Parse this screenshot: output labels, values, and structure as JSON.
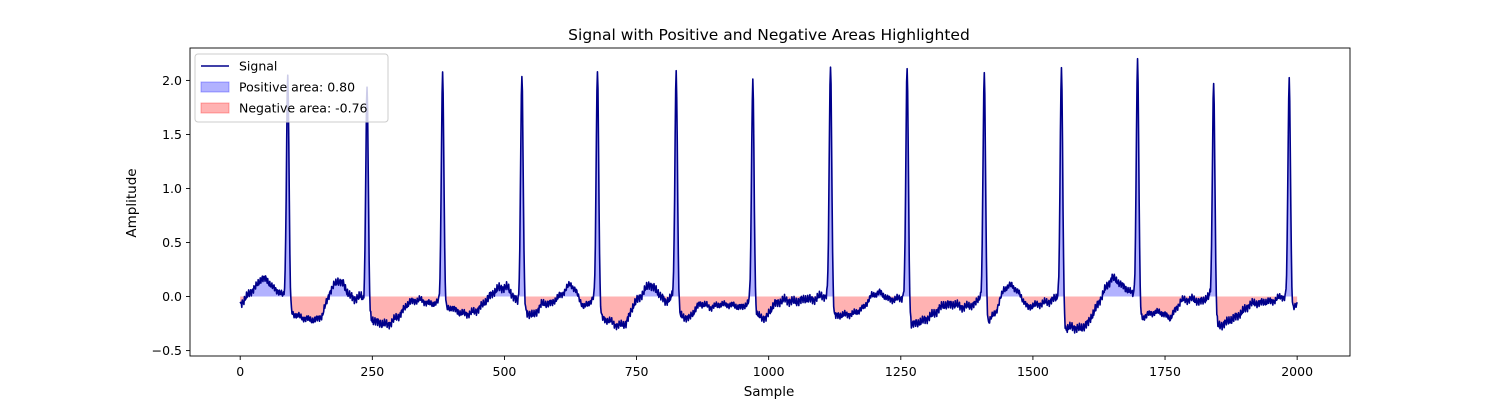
{
  "chart_data": {
    "type": "area",
    "title": "Signal with Positive and Negative Areas Highlighted",
    "xlabel": "Sample",
    "ylabel": "Amplitude",
    "xlim": [
      -95,
      2100
    ],
    "ylim": [
      -0.55,
      2.3
    ],
    "xticks": [
      0,
      250,
      500,
      750,
      1000,
      1250,
      1500,
      1750,
      2000
    ],
    "yticks": [
      -0.5,
      0.0,
      0.5,
      1.0,
      1.5,
      2.0
    ],
    "xtick_labels": [
      "0",
      "250",
      "500",
      "750",
      "1000",
      "1250",
      "1500",
      "1750",
      "2000"
    ],
    "ytick_labels": [
      "−0.5",
      "0.0",
      "0.5",
      "1.0",
      "1.5",
      "2.0"
    ],
    "grid": false,
    "legend_position": "upper-left",
    "series": [
      {
        "name": "Signal",
        "kind": "line",
        "color": "#00008b"
      },
      {
        "name": "Positive area: 0.80",
        "kind": "fill",
        "color": "#0000ff",
        "alpha": 0.3
      },
      {
        "name": "Negative area: -0.76",
        "kind": "fill",
        "color": "#ff0000",
        "alpha": 0.3
      }
    ],
    "peaks": [
      {
        "x": 90,
        "y": 2.05
      },
      {
        "x": 240,
        "y": 1.93
      },
      {
        "x": 383,
        "y": 2.07
      },
      {
        "x": 533,
        "y": 2.05
      },
      {
        "x": 676,
        "y": 2.1
      },
      {
        "x": 825,
        "y": 2.09
      },
      {
        "x": 970,
        "y": 2.01
      },
      {
        "x": 1117,
        "y": 2.14
      },
      {
        "x": 1262,
        "y": 2.11
      },
      {
        "x": 1408,
        "y": 2.05
      },
      {
        "x": 1554,
        "y": 2.1
      },
      {
        "x": 1698,
        "y": 2.18
      },
      {
        "x": 1842,
        "y": 1.98
      },
      {
        "x": 1985,
        "y": 2.0
      }
    ],
    "baseline": [
      [
        0,
        -0.07
      ],
      [
        10,
        -0.02
      ],
      [
        20,
        0.05
      ],
      [
        30,
        0.09
      ],
      [
        40,
        0.17
      ],
      [
        50,
        0.16
      ],
      [
        60,
        0.09
      ],
      [
        70,
        0.06
      ],
      [
        80,
        0.01
      ],
      [
        86,
        0.0
      ],
      [
        95,
        -0.15
      ],
      [
        105,
        -0.17
      ],
      [
        120,
        -0.2
      ],
      [
        140,
        -0.22
      ],
      [
        155,
        -0.18
      ],
      [
        170,
        0.05
      ],
      [
        185,
        0.15
      ],
      [
        195,
        0.12
      ],
      [
        205,
        0.02
      ],
      [
        215,
        -0.02
      ],
      [
        230,
        0.0
      ],
      [
        245,
        -0.2
      ],
      [
        260,
        -0.24
      ],
      [
        280,
        -0.26
      ],
      [
        300,
        -0.18
      ],
      [
        320,
        -0.05
      ],
      [
        340,
        -0.03
      ],
      [
        360,
        -0.07
      ],
      [
        375,
        -0.05
      ],
      [
        390,
        -0.12
      ],
      [
        400,
        -0.1
      ],
      [
        415,
        -0.15
      ],
      [
        430,
        -0.16
      ],
      [
        445,
        -0.14
      ],
      [
        460,
        -0.07
      ],
      [
        475,
        0.02
      ],
      [
        490,
        0.08
      ],
      [
        505,
        0.09
      ],
      [
        520,
        -0.02
      ],
      [
        540,
        -0.14
      ],
      [
        555,
        -0.18
      ],
      [
        570,
        -0.07
      ],
      [
        590,
        -0.06
      ],
      [
        610,
        0.03
      ],
      [
        625,
        0.12
      ],
      [
        635,
        0.05
      ],
      [
        650,
        -0.1
      ],
      [
        668,
        -0.02
      ],
      [
        685,
        -0.2
      ],
      [
        700,
        -0.23
      ],
      [
        715,
        -0.27
      ],
      [
        730,
        -0.25
      ],
      [
        745,
        -0.07
      ],
      [
        760,
        0.02
      ],
      [
        775,
        0.12
      ],
      [
        790,
        0.04
      ],
      [
        805,
        -0.05
      ],
      [
        818,
        0.0
      ],
      [
        832,
        -0.18
      ],
      [
        850,
        -0.2
      ],
      [
        870,
        -0.06
      ],
      [
        890,
        -0.1
      ],
      [
        910,
        -0.07
      ],
      [
        930,
        -0.08
      ],
      [
        950,
        -0.1
      ],
      [
        963,
        -0.05
      ],
      [
        978,
        -0.18
      ],
      [
        995,
        -0.2
      ],
      [
        1010,
        -0.07
      ],
      [
        1030,
        -0.03
      ],
      [
        1050,
        -0.05
      ],
      [
        1070,
        -0.02
      ],
      [
        1085,
        -0.03
      ],
      [
        1100,
        0.01
      ],
      [
        1110,
        0.0
      ],
      [
        1125,
        -0.18
      ],
      [
        1140,
        -0.17
      ],
      [
        1160,
        -0.16
      ],
      [
        1180,
        -0.1
      ],
      [
        1195,
        0.01
      ],
      [
        1210,
        0.04
      ],
      [
        1225,
        -0.02
      ],
      [
        1240,
        -0.03
      ],
      [
        1255,
        0.0
      ],
      [
        1270,
        -0.26
      ],
      [
        1290,
        -0.23
      ],
      [
        1310,
        -0.17
      ],
      [
        1330,
        -0.08
      ],
      [
        1350,
        -0.07
      ],
      [
        1370,
        -0.1
      ],
      [
        1390,
        -0.07
      ],
      [
        1400,
        0.0
      ],
      [
        1415,
        -0.24
      ],
      [
        1430,
        -0.14
      ],
      [
        1445,
        0.07
      ],
      [
        1460,
        0.11
      ],
      [
        1475,
        0.02
      ],
      [
        1490,
        -0.1
      ],
      [
        1510,
        -0.07
      ],
      [
        1530,
        -0.05
      ],
      [
        1547,
        0.0
      ],
      [
        1562,
        -0.3
      ],
      [
        1575,
        -0.28
      ],
      [
        1590,
        -0.3
      ],
      [
        1605,
        -0.24
      ],
      [
        1620,
        -0.1
      ],
      [
        1635,
        0.05
      ],
      [
        1650,
        0.18
      ],
      [
        1665,
        0.12
      ],
      [
        1680,
        0.06
      ],
      [
        1692,
        0.01
      ],
      [
        1705,
        -0.2
      ],
      [
        1720,
        -0.16
      ],
      [
        1740,
        -0.14
      ],
      [
        1760,
        -0.2
      ],
      [
        1780,
        -0.04
      ],
      [
        1800,
        -0.02
      ],
      [
        1815,
        -0.05
      ],
      [
        1835,
        0.0
      ],
      [
        1850,
        -0.28
      ],
      [
        1865,
        -0.24
      ],
      [
        1880,
        -0.2
      ],
      [
        1895,
        -0.15
      ],
      [
        1910,
        -0.07
      ],
      [
        1925,
        -0.06
      ],
      [
        1940,
        -0.05
      ],
      [
        1955,
        -0.04
      ],
      [
        1970,
        0.0
      ],
      [
        1978,
        -0.01
      ],
      [
        1990,
        -0.12
      ],
      [
        2000,
        -0.08
      ]
    ]
  }
}
